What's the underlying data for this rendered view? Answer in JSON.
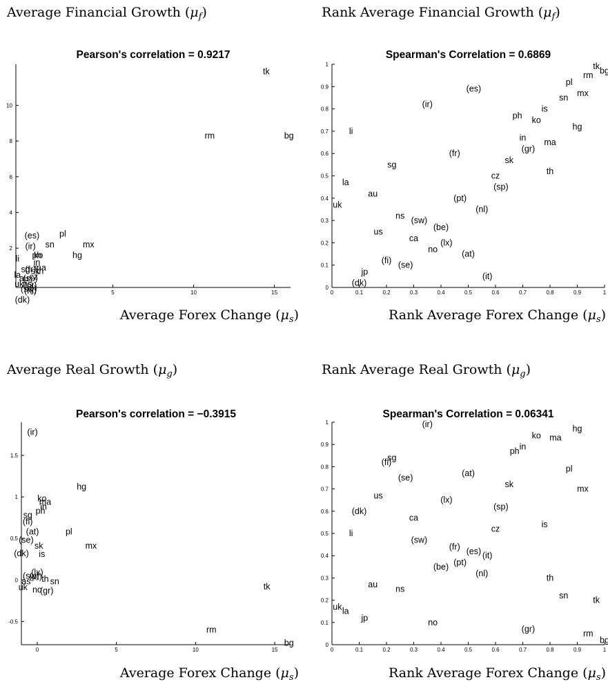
{
  "chart_data": [
    {
      "type": "scatter",
      "heading": "Average Financial Growth (μ_f)",
      "title": "Pearson's correlation = 0.9217",
      "xlabel": "Average Forex Change (μ_s)",
      "ylabel": "",
      "xlim": [
        -1,
        16
      ],
      "ylim": [
        -0.2,
        12.3
      ],
      "xticks": [
        0,
        5,
        10,
        15
      ],
      "xticklabels": [
        "0",
        "5",
        "10",
        "15"
      ],
      "yticks": [
        2,
        4,
        6,
        8,
        10
      ],
      "yticklabels": [
        "2",
        "4",
        "6",
        "8",
        "10"
      ],
      "grid": false,
      "points": [
        {
          "label": "tk",
          "x": 14.5,
          "y": 11.9
        },
        {
          "label": "rm",
          "x": 11.0,
          "y": 8.3
        },
        {
          "label": "bg",
          "x": 15.9,
          "y": 8.3
        },
        {
          "label": "pl",
          "x": 1.9,
          "y": 2.8
        },
        {
          "label": "mx",
          "x": 3.5,
          "y": 2.2
        },
        {
          "label": "hg",
          "x": 2.8,
          "y": 1.6
        },
        {
          "label": "sn",
          "x": 1.1,
          "y": 2.2
        },
        {
          "label": "(es)",
          "x": 0.0,
          "y": 2.7
        },
        {
          "label": "(ir)",
          "x": -0.1,
          "y": 2.1
        },
        {
          "label": "ph",
          "x": 0.3,
          "y": 1.6
        },
        {
          "label": "ko",
          "x": 0.4,
          "y": 1.6
        },
        {
          "label": "li",
          "x": -0.9,
          "y": 1.4
        },
        {
          "label": "in",
          "x": 0.3,
          "y": 1.2
        },
        {
          "label": "ma",
          "x": 0.5,
          "y": 0.9
        },
        {
          "label": "th",
          "x": 0.5,
          "y": 0.7
        },
        {
          "label": "sg",
          "x": -0.4,
          "y": 0.8
        },
        {
          "label": "(fr)",
          "x": -0.1,
          "y": 0.8
        },
        {
          "label": "sk",
          "x": 0.2,
          "y": 0.7
        },
        {
          "label": "la",
          "x": -0.9,
          "y": 0.5
        },
        {
          "label": "au",
          "x": -0.5,
          "y": 0.3
        },
        {
          "label": "(sp)",
          "x": -0.1,
          "y": 0.3
        },
        {
          "label": "cz",
          "x": 0.1,
          "y": 0.4
        },
        {
          "label": "uk",
          "x": -0.8,
          "y": 0.0
        },
        {
          "label": "ns",
          "x": -0.3,
          "y": 0.0
        },
        {
          "label": "(pt)",
          "x": -0.1,
          "y": -0.1
        },
        {
          "label": "(sw)",
          "x": -0.2,
          "y": -0.3
        },
        {
          "label": "(nl)",
          "x": -0.1,
          "y": -0.4
        },
        {
          "label": "(dk)",
          "x": -0.6,
          "y": -0.9
        }
      ]
    },
    {
      "type": "scatter",
      "heading": "Rank Average Financial Growth (μ_f)",
      "title": "Spearman's Correlation = 0.6869",
      "xlabel": "Rank Average Forex Change (μ_s)",
      "ylabel": "",
      "xlim": [
        0,
        1
      ],
      "ylim": [
        0,
        1
      ],
      "xticks": [
        0,
        0.1,
        0.2,
        0.3,
        0.4,
        0.5,
        0.6,
        0.7,
        0.8,
        0.9,
        1
      ],
      "xticklabels": [
        "0",
        "0.1",
        "0.2",
        "0.3",
        "0.4",
        "0.5",
        "0.6",
        "0.7",
        "0.8",
        "0.9",
        "1"
      ],
      "yticks": [
        0,
        0.1,
        0.2,
        0.3,
        0.4,
        0.5,
        0.6,
        0.7,
        0.8,
        0.9,
        1
      ],
      "yticklabels": [
        "0",
        "0.1",
        "0.2",
        "0.3",
        "0.4",
        "0.5",
        "0.6",
        "0.7",
        "0.8",
        "0.9",
        "1"
      ],
      "grid": false,
      "points": [
        {
          "label": "tk",
          "x": 0.97,
          "y": 0.99
        },
        {
          "label": "bg",
          "x": 1.0,
          "y": 0.97
        },
        {
          "label": "rm",
          "x": 0.94,
          "y": 0.95
        },
        {
          "label": "pl",
          "x": 0.87,
          "y": 0.92
        },
        {
          "label": "mx",
          "x": 0.92,
          "y": 0.87
        },
        {
          "label": "sn",
          "x": 0.85,
          "y": 0.85
        },
        {
          "label": "(es)",
          "x": 0.52,
          "y": 0.89
        },
        {
          "label": "(ir)",
          "x": 0.35,
          "y": 0.82
        },
        {
          "label": "is",
          "x": 0.78,
          "y": 0.8
        },
        {
          "label": "ph",
          "x": 0.68,
          "y": 0.77
        },
        {
          "label": "ko",
          "x": 0.75,
          "y": 0.75
        },
        {
          "label": "hg",
          "x": 0.9,
          "y": 0.72
        },
        {
          "label": "li",
          "x": 0.07,
          "y": 0.7
        },
        {
          "label": "in",
          "x": 0.7,
          "y": 0.67
        },
        {
          "label": "ma",
          "x": 0.8,
          "y": 0.65
        },
        {
          "label": "(gr)",
          "x": 0.72,
          "y": 0.62
        },
        {
          "label": "(fr)",
          "x": 0.45,
          "y": 0.6
        },
        {
          "label": "sk",
          "x": 0.65,
          "y": 0.57
        },
        {
          "label": "sg",
          "x": 0.22,
          "y": 0.55
        },
        {
          "label": "th",
          "x": 0.8,
          "y": 0.52
        },
        {
          "label": "cz",
          "x": 0.6,
          "y": 0.5
        },
        {
          "label": "la",
          "x": 0.05,
          "y": 0.47
        },
        {
          "label": "(sp)",
          "x": 0.62,
          "y": 0.45
        },
        {
          "label": "au",
          "x": 0.15,
          "y": 0.42
        },
        {
          "label": "(pt)",
          "x": 0.47,
          "y": 0.4
        },
        {
          "label": "uk",
          "x": 0.02,
          "y": 0.37
        },
        {
          "label": "(nl)",
          "x": 0.55,
          "y": 0.35
        },
        {
          "label": "ns",
          "x": 0.25,
          "y": 0.32
        },
        {
          "label": "(sw)",
          "x": 0.32,
          "y": 0.3
        },
        {
          "label": "(be)",
          "x": 0.4,
          "y": 0.27
        },
        {
          "label": "us",
          "x": 0.17,
          "y": 0.25
        },
        {
          "label": "ca",
          "x": 0.3,
          "y": 0.22
        },
        {
          "label": "(lx)",
          "x": 0.42,
          "y": 0.2
        },
        {
          "label": "no",
          "x": 0.37,
          "y": 0.17
        },
        {
          "label": "(at)",
          "x": 0.5,
          "y": 0.15
        },
        {
          "label": "(fi)",
          "x": 0.2,
          "y": 0.12
        },
        {
          "label": "(se)",
          "x": 0.27,
          "y": 0.1
        },
        {
          "label": "jp",
          "x": 0.12,
          "y": 0.07
        },
        {
          "label": "(it)",
          "x": 0.57,
          "y": 0.05
        },
        {
          "label": "(dk)",
          "x": 0.1,
          "y": 0.02
        }
      ]
    },
    {
      "type": "scatter",
      "heading": "Average Real Growth (μ_g)",
      "title": "Pearson's correlation = −0.3915",
      "xlabel": "Average Forex Change (μ_s)",
      "ylabel": "",
      "xlim": [
        -1,
        16
      ],
      "ylim": [
        -0.78,
        1.9
      ],
      "xticks": [
        0,
        5,
        10,
        15
      ],
      "xticklabels": [
        "0",
        "5",
        "10",
        "15"
      ],
      "yticks": [
        -0.5,
        0,
        0.5,
        1,
        1.5
      ],
      "yticklabels": [
        "-0.5",
        "0",
        "0.5",
        "1",
        "1.5"
      ],
      "grid": false,
      "points": [
        {
          "label": "(ir)",
          "x": -0.3,
          "y": 1.78
        },
        {
          "label": "hg",
          "x": 2.8,
          "y": 1.12
        },
        {
          "label": "ko",
          "x": 0.3,
          "y": 0.98
        },
        {
          "label": "ma",
          "x": 0.5,
          "y": 0.94
        },
        {
          "label": "in",
          "x": 0.4,
          "y": 0.88
        },
        {
          "label": "ph",
          "x": 0.2,
          "y": 0.83
        },
        {
          "label": "sg",
          "x": -0.6,
          "y": 0.78
        },
        {
          "label": "(fi)",
          "x": -0.6,
          "y": 0.7
        },
        {
          "label": "(at)",
          "x": -0.3,
          "y": 0.58
        },
        {
          "label": "pl",
          "x": 2.0,
          "y": 0.58
        },
        {
          "label": "(se)",
          "x": -0.7,
          "y": 0.48
        },
        {
          "label": "mx",
          "x": 3.4,
          "y": 0.41
        },
        {
          "label": "sk",
          "x": 0.1,
          "y": 0.41
        },
        {
          "label": "(dk)",
          "x": -1.0,
          "y": 0.32
        },
        {
          "label": "is",
          "x": 0.3,
          "y": 0.31
        },
        {
          "label": "(sw)",
          "x": -0.4,
          "y": 0.05
        },
        {
          "label": "(lx)",
          "x": 0.0,
          "y": 0.09
        },
        {
          "label": "(pt)",
          "x": -0.1,
          "y": 0.04
        },
        {
          "label": "as",
          "x": -0.7,
          "y": -0.02
        },
        {
          "label": "th",
          "x": 0.5,
          "y": 0.01
        },
        {
          "label": "sn",
          "x": 1.1,
          "y": -0.02
        },
        {
          "label": "tk",
          "x": 14.5,
          "y": -0.08
        },
        {
          "label": "uk",
          "x": -0.9,
          "y": -0.09
        },
        {
          "label": "no",
          "x": 0.0,
          "y": -0.12
        },
        {
          "label": "(gr)",
          "x": 0.6,
          "y": -0.13
        },
        {
          "label": "rm",
          "x": 11.0,
          "y": -0.6
        },
        {
          "label": "bg",
          "x": 15.9,
          "y": -0.76
        }
      ]
    },
    {
      "type": "scatter",
      "heading": "Rank Average Real Growth (μ_g)",
      "title": "Spearman's Correlation = 0.06341",
      "xlabel": "Rank Average Forex Change (μ_s)",
      "ylabel": "",
      "xlim": [
        0,
        1
      ],
      "ylim": [
        0,
        1
      ],
      "xticks": [
        0,
        0.1,
        0.2,
        0.3,
        0.4,
        0.5,
        0.6,
        0.7,
        0.8,
        0.9,
        1
      ],
      "xticklabels": [
        "0",
        "0.1",
        "0.2",
        "0.3",
        "0.4",
        "0.5",
        "0.6",
        "0.7",
        "0.8",
        "0.9",
        "1"
      ],
      "yticks": [
        0,
        0.1,
        0.2,
        0.3,
        0.4,
        0.5,
        0.6,
        0.7,
        0.8,
        0.9,
        1
      ],
      "yticklabels": [
        "0",
        "0.1",
        "0.2",
        "0.3",
        "0.4",
        "0.5",
        "0.6",
        "0.7",
        "0.8",
        "0.9",
        "1"
      ],
      "grid": false,
      "points": [
        {
          "label": "(ir)",
          "x": 0.35,
          "y": 0.99
        },
        {
          "label": "hg",
          "x": 0.9,
          "y": 0.97
        },
        {
          "label": "ko",
          "x": 0.75,
          "y": 0.94
        },
        {
          "label": "ma",
          "x": 0.82,
          "y": 0.93
        },
        {
          "label": "in",
          "x": 0.7,
          "y": 0.89
        },
        {
          "label": "ph",
          "x": 0.67,
          "y": 0.87
        },
        {
          "label": "sg",
          "x": 0.22,
          "y": 0.84
        },
        {
          "label": "(fi)",
          "x": 0.2,
          "y": 0.82
        },
        {
          "label": "pl",
          "x": 0.87,
          "y": 0.79
        },
        {
          "label": "(at)",
          "x": 0.5,
          "y": 0.77
        },
        {
          "label": "(se)",
          "x": 0.27,
          "y": 0.75
        },
        {
          "label": "sk",
          "x": 0.65,
          "y": 0.72
        },
        {
          "label": "mx",
          "x": 0.92,
          "y": 0.7
        },
        {
          "label": "us",
          "x": 0.17,
          "y": 0.67
        },
        {
          "label": "(lx)",
          "x": 0.42,
          "y": 0.65
        },
        {
          "label": "(sp)",
          "x": 0.62,
          "y": 0.62
        },
        {
          "label": "(dk)",
          "x": 0.1,
          "y": 0.6
        },
        {
          "label": "ca",
          "x": 0.3,
          "y": 0.57
        },
        {
          "label": "is",
          "x": 0.78,
          "y": 0.54
        },
        {
          "label": "cz",
          "x": 0.6,
          "y": 0.52
        },
        {
          "label": "li",
          "x": 0.07,
          "y": 0.5
        },
        {
          "label": "(sw)",
          "x": 0.32,
          "y": 0.47
        },
        {
          "label": "(fr)",
          "x": 0.45,
          "y": 0.44
        },
        {
          "label": "(es)",
          "x": 0.52,
          "y": 0.42
        },
        {
          "label": "(it)",
          "x": 0.57,
          "y": 0.4
        },
        {
          "label": "(pt)",
          "x": 0.47,
          "y": 0.37
        },
        {
          "label": "(be)",
          "x": 0.4,
          "y": 0.35
        },
        {
          "label": "(nl)",
          "x": 0.55,
          "y": 0.32
        },
        {
          "label": "th",
          "x": 0.8,
          "y": 0.3
        },
        {
          "label": "au",
          "x": 0.15,
          "y": 0.27
        },
        {
          "label": "ns",
          "x": 0.25,
          "y": 0.25
        },
        {
          "label": "sn",
          "x": 0.85,
          "y": 0.22
        },
        {
          "label": "tk",
          "x": 0.97,
          "y": 0.2
        },
        {
          "label": "uk",
          "x": 0.02,
          "y": 0.17
        },
        {
          "label": "la",
          "x": 0.05,
          "y": 0.15
        },
        {
          "label": "jp",
          "x": 0.12,
          "y": 0.12
        },
        {
          "label": "no",
          "x": 0.37,
          "y": 0.1
        },
        {
          "label": "(gr)",
          "x": 0.72,
          "y": 0.07
        },
        {
          "label": "rm",
          "x": 0.94,
          "y": 0.05
        },
        {
          "label": "bg",
          "x": 1.0,
          "y": 0.02
        }
      ]
    }
  ]
}
